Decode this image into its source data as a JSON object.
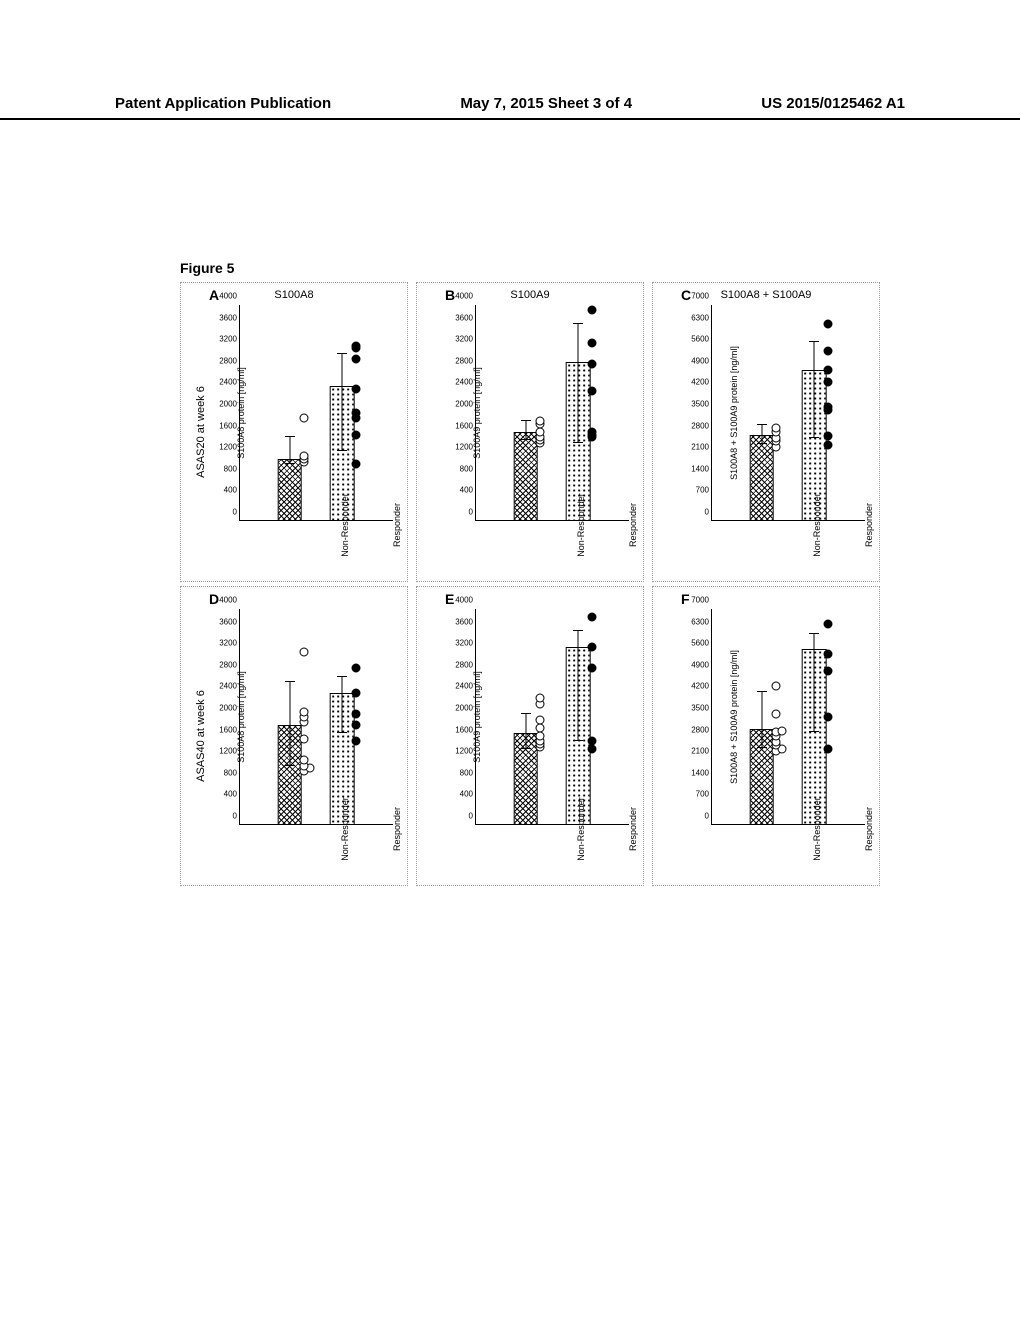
{
  "header": {
    "left": "Patent Application Publication",
    "center": "May 7, 2015  Sheet 3 of 4",
    "right": "US 2015/0125462 A1"
  },
  "figure_label": "Figure 5",
  "row_labels": [
    "ASAS20 at week 6",
    "ASAS40 at week 6"
  ],
  "column_titles": [
    "S100A8",
    "S100A9",
    "S100A8 + S100A9"
  ],
  "panel_letters": [
    "A",
    "B",
    "C",
    "D",
    "E",
    "F"
  ],
  "yaxis_labels": [
    "S100A8 protein [ng/ml]",
    "S100A9 protein [ng/ml]",
    "S100A8 + S100A9 protein [ng/ml]",
    "S100A8 protein [ng/ml]",
    "S100A9 protein [ng/ml]",
    "S100A8 + S100A9 protein [ng/ml]"
  ],
  "categories": [
    "Non-Responder",
    "Responder"
  ],
  "panels": [
    {
      "ymax": 4000,
      "yticks": [
        0,
        400,
        800,
        1200,
        1600,
        2000,
        2400,
        2800,
        3200,
        3600,
        4000
      ],
      "bars": [
        {
          "x": 33,
          "mean": 1150,
          "sd_top": 1550,
          "sd_bot": 1050,
          "pattern": "cross"
        },
        {
          "x": 67,
          "mean": 2500,
          "sd_top": 3100,
          "sd_bot": 1300,
          "pattern": "dots"
        }
      ],
      "points": [
        {
          "x": 42,
          "y": 1100,
          "fill": 0
        },
        {
          "x": 42,
          "y": 1150,
          "fill": 0
        },
        {
          "x": 42,
          "y": 1200,
          "fill": 0
        },
        {
          "x": 42,
          "y": 1900,
          "fill": 0
        },
        {
          "x": 76,
          "y": 1050,
          "fill": 1
        },
        {
          "x": 76,
          "y": 1600,
          "fill": 1
        },
        {
          "x": 76,
          "y": 1900,
          "fill": 1
        },
        {
          "x": 76,
          "y": 2000,
          "fill": 1
        },
        {
          "x": 76,
          "y": 2450,
          "fill": 1
        },
        {
          "x": 76,
          "y": 3000,
          "fill": 1
        },
        {
          "x": 76,
          "y": 3200,
          "fill": 1
        },
        {
          "x": 76,
          "y": 3250,
          "fill": 1
        }
      ]
    },
    {
      "ymax": 4000,
      "yticks": [
        0,
        400,
        800,
        1200,
        1600,
        2000,
        2400,
        2800,
        3200,
        3600,
        4000
      ],
      "bars": [
        {
          "x": 33,
          "mean": 1650,
          "sd_top": 1850,
          "sd_bot": 1500,
          "pattern": "cross"
        },
        {
          "x": 67,
          "mean": 2950,
          "sd_top": 3650,
          "sd_bot": 1450,
          "pattern": "dots"
        }
      ],
      "points": [
        {
          "x": 42,
          "y": 1450,
          "fill": 0
        },
        {
          "x": 42,
          "y": 1500,
          "fill": 0
        },
        {
          "x": 42,
          "y": 1550,
          "fill": 0
        },
        {
          "x": 42,
          "y": 1650,
          "fill": 0
        },
        {
          "x": 42,
          "y": 1800,
          "fill": 0
        },
        {
          "x": 42,
          "y": 1850,
          "fill": 0
        },
        {
          "x": 76,
          "y": 1550,
          "fill": 1
        },
        {
          "x": 76,
          "y": 1600,
          "fill": 1
        },
        {
          "x": 76,
          "y": 1650,
          "fill": 1
        },
        {
          "x": 76,
          "y": 2400,
          "fill": 1
        },
        {
          "x": 76,
          "y": 2900,
          "fill": 1
        },
        {
          "x": 76,
          "y": 3300,
          "fill": 1
        },
        {
          "x": 76,
          "y": 3900,
          "fill": 1
        }
      ]
    },
    {
      "ymax": 7000,
      "yticks": [
        0,
        700,
        1400,
        2100,
        2800,
        3500,
        4200,
        4900,
        5600,
        6300,
        7000
      ],
      "bars": [
        {
          "x": 33,
          "mean": 2800,
          "sd_top": 3100,
          "sd_bot": 2500,
          "pattern": "cross"
        },
        {
          "x": 67,
          "mean": 4900,
          "sd_top": 5800,
          "sd_bot": 2700,
          "pattern": "dots"
        }
      ],
      "points": [
        {
          "x": 42,
          "y": 2400,
          "fill": 0
        },
        {
          "x": 42,
          "y": 2600,
          "fill": 0
        },
        {
          "x": 42,
          "y": 2700,
          "fill": 0
        },
        {
          "x": 42,
          "y": 2900,
          "fill": 0
        },
        {
          "x": 42,
          "y": 3000,
          "fill": 0
        },
        {
          "x": 76,
          "y": 2450,
          "fill": 1
        },
        {
          "x": 76,
          "y": 2750,
          "fill": 1
        },
        {
          "x": 76,
          "y": 3600,
          "fill": 1
        },
        {
          "x": 76,
          "y": 3700,
          "fill": 1
        },
        {
          "x": 76,
          "y": 4500,
          "fill": 1
        },
        {
          "x": 76,
          "y": 4900,
          "fill": 1
        },
        {
          "x": 76,
          "y": 5500,
          "fill": 1
        },
        {
          "x": 76,
          "y": 6400,
          "fill": 1
        }
      ]
    },
    {
      "ymax": 4000,
      "yticks": [
        0,
        400,
        800,
        1200,
        1600,
        2000,
        2400,
        2800,
        3200,
        3600,
        4000
      ],
      "bars": [
        {
          "x": 33,
          "mean": 1850,
          "sd_top": 2650,
          "sd_bot": 1100,
          "pattern": "cross"
        },
        {
          "x": 67,
          "mean": 2450,
          "sd_top": 2750,
          "sd_bot": 1700,
          "pattern": "dots"
        }
      ],
      "points": [
        {
          "x": 42,
          "y": 1000,
          "fill": 0
        },
        {
          "x": 46,
          "y": 1050,
          "fill": 0
        },
        {
          "x": 42,
          "y": 1100,
          "fill": 0
        },
        {
          "x": 42,
          "y": 1200,
          "fill": 0
        },
        {
          "x": 42,
          "y": 1600,
          "fill": 0
        },
        {
          "x": 42,
          "y": 1900,
          "fill": 0
        },
        {
          "x": 42,
          "y": 2000,
          "fill": 0
        },
        {
          "x": 42,
          "y": 2100,
          "fill": 0
        },
        {
          "x": 42,
          "y": 3200,
          "fill": 0
        },
        {
          "x": 76,
          "y": 1550,
          "fill": 1
        },
        {
          "x": 76,
          "y": 1850,
          "fill": 1
        },
        {
          "x": 76,
          "y": 2050,
          "fill": 1
        },
        {
          "x": 76,
          "y": 2450,
          "fill": 1
        },
        {
          "x": 76,
          "y": 2900,
          "fill": 1
        }
      ]
    },
    {
      "ymax": 4000,
      "yticks": [
        0,
        400,
        800,
        1200,
        1600,
        2000,
        2400,
        2800,
        3200,
        3600,
        4000
      ],
      "bars": [
        {
          "x": 33,
          "mean": 1700,
          "sd_top": 2050,
          "sd_bot": 1400,
          "pattern": "cross"
        },
        {
          "x": 67,
          "mean": 3300,
          "sd_top": 3600,
          "sd_bot": 1550,
          "pattern": "dots"
        }
      ],
      "points": [
        {
          "x": 42,
          "y": 1450,
          "fill": 0
        },
        {
          "x": 42,
          "y": 1500,
          "fill": 0
        },
        {
          "x": 42,
          "y": 1550,
          "fill": 0
        },
        {
          "x": 42,
          "y": 1650,
          "fill": 0
        },
        {
          "x": 42,
          "y": 1800,
          "fill": 0
        },
        {
          "x": 42,
          "y": 1950,
          "fill": 0
        },
        {
          "x": 42,
          "y": 2250,
          "fill": 0
        },
        {
          "x": 42,
          "y": 2350,
          "fill": 0
        },
        {
          "x": 76,
          "y": 1400,
          "fill": 1
        },
        {
          "x": 76,
          "y": 1550,
          "fill": 1
        },
        {
          "x": 76,
          "y": 2900,
          "fill": 1
        },
        {
          "x": 76,
          "y": 3300,
          "fill": 1
        },
        {
          "x": 76,
          "y": 3850,
          "fill": 1
        }
      ]
    },
    {
      "ymax": 7000,
      "yticks": [
        0,
        700,
        1400,
        2100,
        2800,
        3500,
        4200,
        4900,
        5600,
        6300,
        7000
      ],
      "bars": [
        {
          "x": 33,
          "mean": 3100,
          "sd_top": 4300,
          "sd_bot": 2500,
          "pattern": "cross"
        },
        {
          "x": 67,
          "mean": 5700,
          "sd_top": 6200,
          "sd_bot": 3000,
          "pattern": "dots"
        }
      ],
      "points": [
        {
          "x": 42,
          "y": 2400,
          "fill": 0
        },
        {
          "x": 46,
          "y": 2450,
          "fill": 0
        },
        {
          "x": 42,
          "y": 2600,
          "fill": 0
        },
        {
          "x": 42,
          "y": 2700,
          "fill": 0
        },
        {
          "x": 42,
          "y": 2900,
          "fill": 0
        },
        {
          "x": 42,
          "y": 3000,
          "fill": 0
        },
        {
          "x": 46,
          "y": 3050,
          "fill": 0
        },
        {
          "x": 42,
          "y": 3600,
          "fill": 0
        },
        {
          "x": 42,
          "y": 4500,
          "fill": 0
        },
        {
          "x": 76,
          "y": 2450,
          "fill": 1
        },
        {
          "x": 76,
          "y": 3500,
          "fill": 1
        },
        {
          "x": 76,
          "y": 5000,
          "fill": 1
        },
        {
          "x": 76,
          "y": 5550,
          "fill": 1
        },
        {
          "x": 76,
          "y": 6500,
          "fill": 1
        }
      ]
    }
  ],
  "colors": {
    "axis": "#000000",
    "dot_border": "#999999"
  },
  "patterns": {
    "cross": "repeating-linear-gradient(45deg,#000 0 1px,transparent 1px 4px),repeating-linear-gradient(-45deg,#000 0 1px,transparent 1px 4px)",
    "dots": "radial-gradient(#000 1px, transparent 1.2px)",
    "dots_size": "5px 5px"
  }
}
